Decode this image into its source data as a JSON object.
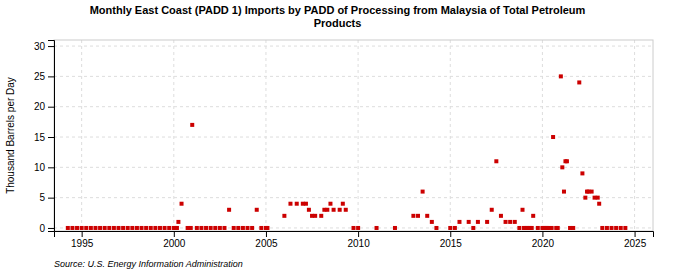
{
  "chart_data": {
    "type": "scatter",
    "title": "Monthly East Coast (PADD 1) Imports by PADD of Processing from Malaysia of Total Petroleum\nProducts",
    "ylabel": "Thousand Barrels per Day",
    "annotations": [
      "Source: U.S. Energy Information Administration"
    ],
    "color": "#cc0000",
    "marker": "square",
    "grid": true,
    "xlim": [
      1993.5,
      2026
    ],
    "ylim": [
      -0.5,
      31
    ],
    "xticks": [
      1995,
      2000,
      2005,
      2010,
      2015,
      2020,
      2025
    ],
    "yticks": [
      0,
      5,
      10,
      15,
      20,
      25,
      30
    ],
    "x": [
      1994.25,
      1994.5,
      1994.75,
      1995.0,
      1995.25,
      1995.5,
      1995.75,
      1996.0,
      1996.25,
      1996.5,
      1996.75,
      1997.0,
      1997.25,
      1997.5,
      1997.75,
      1998.0,
      1998.25,
      1998.5,
      1998.75,
      1999.0,
      1999.25,
      1999.5,
      1999.75,
      2000.0,
      2000.08,
      2000.17,
      2000.25,
      2000.42,
      2000.75,
      2000.92,
      2001.0,
      2001.25,
      2001.5,
      2001.75,
      2002.0,
      2002.25,
      2002.5,
      2002.75,
      2003.0,
      2003.25,
      2003.5,
      2003.75,
      2004.0,
      2004.25,
      2004.5,
      2004.75,
      2005.0,
      2005.08,
      2006.0,
      2006.33,
      2006.67,
      2007.0,
      2007.17,
      2007.33,
      2007.5,
      2007.67,
      2008.0,
      2008.17,
      2008.33,
      2008.5,
      2008.67,
      2009.0,
      2009.17,
      2009.33,
      2009.75,
      2010.0,
      2011.0,
      2012.0,
      2013.0,
      2013.25,
      2013.5,
      2013.75,
      2014.0,
      2014.25,
      2015.0,
      2015.25,
      2015.5,
      2016.0,
      2016.25,
      2016.5,
      2017.0,
      2017.25,
      2017.5,
      2017.75,
      2018.0,
      2018.25,
      2018.5,
      2018.75,
      2018.92,
      2019.0,
      2019.08,
      2019.17,
      2019.25,
      2019.33,
      2019.42,
      2019.5,
      2019.75,
      2020.0,
      2020.08,
      2020.17,
      2020.25,
      2020.33,
      2020.5,
      2020.58,
      2020.75,
      2020.83,
      2021.0,
      2021.08,
      2021.17,
      2021.25,
      2021.33,
      2021.5,
      2021.67,
      2022.0,
      2022.17,
      2022.33,
      2022.42,
      2022.5,
      2022.67,
      2022.83,
      2023.0,
      2023.08,
      2023.25,
      2023.5,
      2023.75,
      2024.0,
      2024.25,
      2024.5
    ],
    "values": [
      0,
      0,
      0,
      0,
      0,
      0,
      0,
      0,
      0,
      0,
      0,
      0,
      0,
      0,
      0,
      0,
      0,
      0,
      0,
      0,
      0,
      0,
      0,
      0,
      0,
      0,
      1,
      4,
      0,
      0,
      17,
      0,
      0,
      0,
      0,
      0,
      0,
      0,
      3,
      0,
      0,
      0,
      0,
      0,
      3,
      0,
      0,
      0,
      2,
      4,
      4,
      4,
      4,
      3,
      2,
      2,
      2,
      3,
      3,
      4,
      3,
      3,
      4,
      3,
      0,
      0,
      0,
      0,
      2,
      2,
      6,
      2,
      1,
      0,
      0,
      0,
      1,
      1,
      0,
      1,
      1,
      3,
      11,
      2,
      1,
      1,
      1,
      0,
      3,
      0,
      0,
      0,
      0,
      0,
      0,
      2,
      0,
      0,
      0,
      0,
      0,
      0,
      0,
      15,
      0,
      0,
      25,
      10,
      6,
      11,
      11,
      0,
      0,
      24,
      9,
      5,
      6,
      6,
      6,
      5,
      5,
      4,
      0,
      0,
      0,
      0,
      0,
      0
    ]
  }
}
